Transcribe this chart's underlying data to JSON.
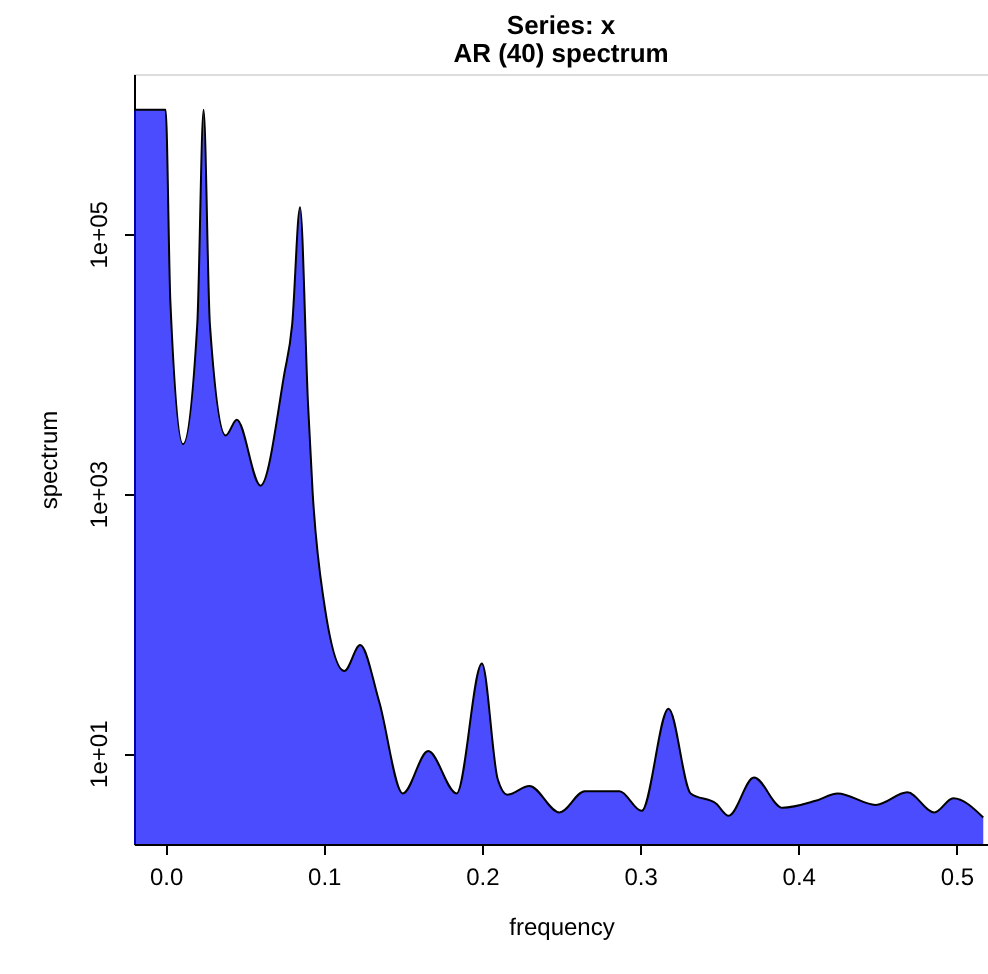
{
  "chart_data": {
    "type": "area",
    "title": "Series: x",
    "subtitle": "AR (40) spectrum",
    "xlabel": "frequency",
    "ylabel": "spectrum",
    "log": true,
    "grid": false,
    "xlim": [
      -0.02,
      0.52
    ],
    "xticks": [
      {
        "value": 0,
        "label": "0.0"
      },
      0.1,
      0.2,
      0.3,
      0.4,
      0.5
    ],
    "ylim": [
      2,
      1700000
    ],
    "yticks": [
      {
        "value": 10,
        "label": "1e+01"
      },
      {
        "value": 1000,
        "label": "1e+03"
      },
      {
        "value": 100000,
        "label": "1e+05"
      }
    ],
    "series": [
      {
        "color": "#0000ff",
        "x": [
          -0.02,
          0.0,
          0.003,
          0.011,
          0.02,
          0.024,
          0.028,
          0.038,
          0.045,
          0.06,
          0.075,
          0.08,
          0.085,
          0.09,
          0.093,
          0.1,
          0.113,
          0.123,
          0.135,
          0.15,
          0.166,
          0.184,
          0.2,
          0.21,
          0.216,
          0.23,
          0.249,
          0.265,
          0.287,
          0.301,
          0.318,
          0.332,
          0.348,
          0.356,
          0.372,
          0.39,
          0.411,
          0.425,
          0.449,
          0.469,
          0.486,
          0.498,
          0.517
        ],
        "values": [
          900000,
          900000,
          30000,
          2400,
          20000,
          900000,
          20000,
          2800,
          3700,
          1150,
          8300,
          20000,
          160000,
          5000,
          1000,
          150,
          43,
          68,
          25,
          4.9,
          10.4,
          4.9,
          49,
          6.3,
          4.8,
          5.6,
          3.5,
          5.1,
          5.1,
          3.6,
          22,
          4.9,
          4.1,
          3.3,
          6.5,
          3.8,
          4.3,
          4.9,
          4.0,
          5.0,
          3.5,
          4.5,
          3.2
        ]
      }
    ]
  }
}
